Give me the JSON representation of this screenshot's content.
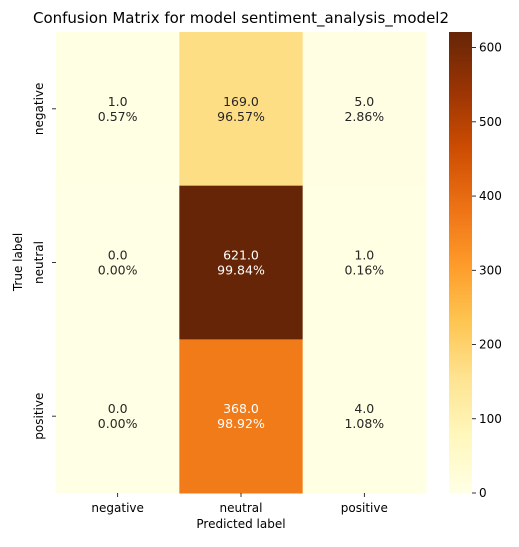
{
  "chart_data": {
    "type": "heatmap",
    "title": "Confusion Matrix for model sentiment_analysis_model2",
    "xlabel": "Predicted label",
    "ylabel": "True label",
    "x_categories": [
      "negative",
      "neutral",
      "positive"
    ],
    "y_categories": [
      "negative",
      "neutral",
      "positive"
    ],
    "values": [
      [
        1.0,
        169.0,
        5.0
      ],
      [
        0.0,
        621.0,
        1.0
      ],
      [
        0.0,
        368.0,
        4.0
      ]
    ],
    "cell_labels": [
      [
        [
          "1.0",
          "0.57%"
        ],
        [
          "169.0",
          "96.57%"
        ],
        [
          "5.0",
          "2.86%"
        ]
      ],
      [
        [
          "0.0",
          "0.00%"
        ],
        [
          "621.0",
          "99.84%"
        ],
        [
          "1.0",
          "0.16%"
        ]
      ],
      [
        [
          "0.0",
          "0.00%"
        ],
        [
          "368.0",
          "98.92%"
        ],
        [
          "4.0",
          "1.08%"
        ]
      ]
    ],
    "colorbar": {
      "range": [
        0,
        621
      ],
      "ticks": [
        0,
        100,
        200,
        300,
        400,
        500,
        600
      ],
      "tick_labels": [
        "0",
        "100",
        "200",
        "300",
        "400",
        "500",
        "600"
      ]
    },
    "colormap": "YlOrBr",
    "colors": [
      "#ffffe5",
      "#fff7bc",
      "#fee391",
      "#fec44f",
      "#fe9929",
      "#ec7014",
      "#cc4c02",
      "#993404",
      "#662506"
    ]
  }
}
